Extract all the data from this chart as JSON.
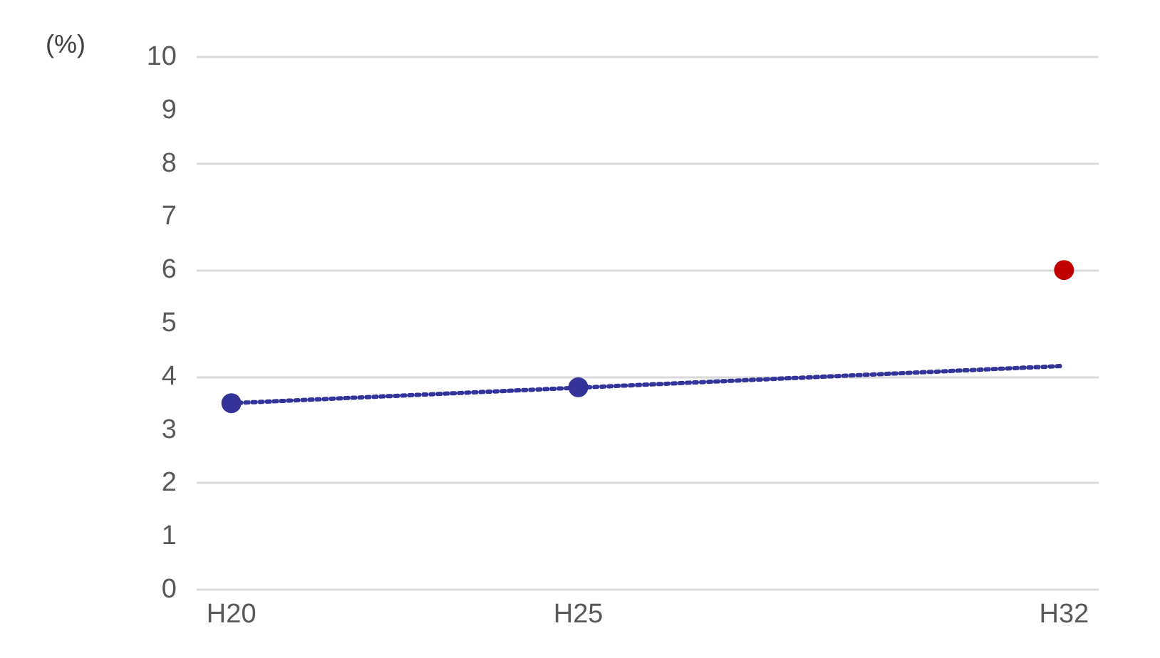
{
  "chart_data": {
    "type": "scatter",
    "ylabel": "(%)",
    "categories": [
      "H20",
      null,
      null,
      null,
      null,
      "H25",
      null,
      null,
      null,
      null,
      null,
      null,
      "H32"
    ],
    "ylim": [
      0,
      10
    ],
    "yticks": [
      0,
      1,
      2,
      3,
      4,
      5,
      6,
      7,
      8,
      9,
      10
    ],
    "grid": "y",
    "series": [
      {
        "type": "line",
        "values": [
          3.5,
          null,
          null,
          null,
          null,
          null,
          null,
          null,
          null,
          null,
          null,
          null,
          4.2
        ],
        "color": "#333399",
        "line_style": "dotted",
        "marker": "none"
      },
      {
        "values": [
          3.5,
          null,
          null,
          null,
          null,
          3.8,
          null,
          null,
          null,
          null,
          null,
          null,
          null
        ],
        "color": "#333399",
        "marker": "circle"
      },
      {
        "values": [
          null,
          null,
          null,
          null,
          null,
          null,
          null,
          null,
          null,
          null,
          null,
          null,
          6
        ],
        "color": "#c00000",
        "marker": "circle"
      }
    ]
  }
}
